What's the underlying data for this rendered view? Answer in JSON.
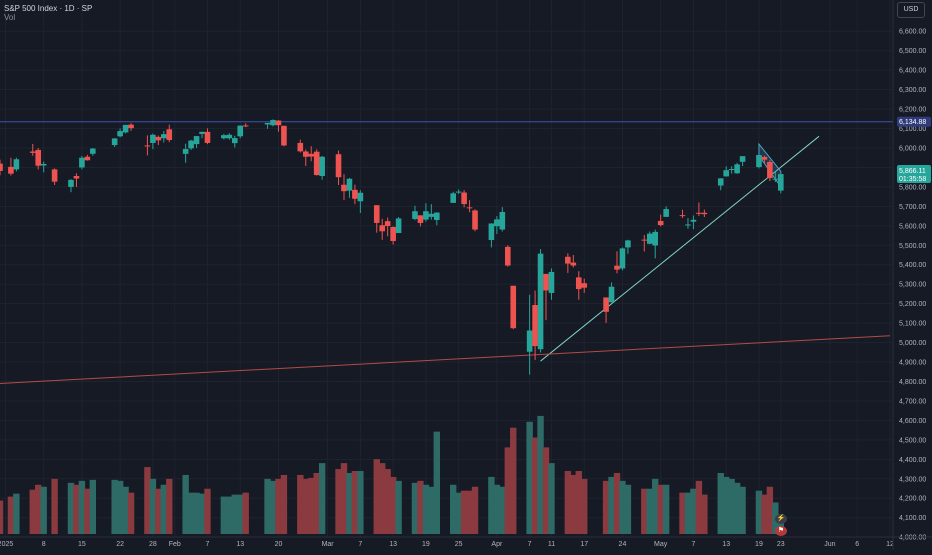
{
  "header": {
    "title": "S&P 500 Index · 1D · SP",
    "subtitle": "Vol"
  },
  "currency_button": "USD",
  "price_labels": {
    "horizontal_level": "6,134.88",
    "last_price": "5,866.11",
    "countdown": "01:35:58"
  },
  "badges": [
    {
      "icon": "lightning-icon",
      "glyph": "⚡",
      "color": "#ef5350"
    },
    {
      "icon": "flag-icon",
      "glyph": "⚑",
      "color": "#ef5350"
    }
  ],
  "colors": {
    "up": "#26a69a",
    "down": "#ef5350",
    "vol_up": "#2e6b66",
    "vol_down": "#8b3a3f",
    "grid": "#1f2330",
    "horizontal_line": "#3f51b5",
    "trendline": "#7fd4c1",
    "support_line": "#b24c48",
    "channel": "#4aa3c7",
    "last_price_bg": "#26a69a",
    "text": "#b2b5be"
  },
  "chart_data": {
    "type": "candlestick",
    "title": "S&P 500 Index · 1D · SP",
    "y_axis": {
      "range": [
        3970,
        6740
      ],
      "tick_labels": [
        "6,600.00",
        "6,500.00",
        "6,400.00",
        "6,300.00",
        "6,200.00",
        "6,100.00",
        "6,000.00",
        "5,900.00",
        "5,800.00",
        "5,700.00",
        "5,600.00",
        "5,500.00",
        "5,400.00",
        "5,300.00",
        "5,200.00",
        "5,100.00",
        "5,000.00",
        "4,900.00",
        "4,800.00",
        "4,700.00",
        "4,600.00",
        "4,500.00",
        "4,400.00",
        "4,300.00",
        "4,200.00",
        "4,100.00",
        "4,000.00"
      ]
    },
    "x_axis": {
      "range": [
        "2024-12-31",
        "2025-06-12"
      ],
      "ticks": [
        {
          "date": "2025-01-01",
          "label": "2025"
        },
        {
          "date": "2025-01-08",
          "label": "8"
        },
        {
          "date": "2025-01-15",
          "label": "15"
        },
        {
          "date": "2025-01-22",
          "label": "22"
        },
        {
          "date": "2025-01-28",
          "label": "28"
        },
        {
          "date": "2025-02-01",
          "label": "Feb"
        },
        {
          "date": "2025-02-07",
          "label": "7"
        },
        {
          "date": "2025-02-13",
          "label": "13"
        },
        {
          "date": "2025-02-20",
          "label": "20"
        },
        {
          "date": "2025-03-01",
          "label": "Mar"
        },
        {
          "date": "2025-03-07",
          "label": "7"
        },
        {
          "date": "2025-03-13",
          "label": "13"
        },
        {
          "date": "2025-03-19",
          "label": "19"
        },
        {
          "date": "2025-03-25",
          "label": "25"
        },
        {
          "date": "2025-04-01",
          "label": "Apr"
        },
        {
          "date": "2025-04-07",
          "label": "7"
        },
        {
          "date": "2025-04-11",
          "label": "11"
        },
        {
          "date": "2025-04-17",
          "label": "17"
        },
        {
          "date": "2025-04-24",
          "label": "24"
        },
        {
          "date": "2025-05-01",
          "label": "May"
        },
        {
          "date": "2025-05-07",
          "label": "7"
        },
        {
          "date": "2025-05-13",
          "label": "13"
        },
        {
          "date": "2025-05-19",
          "label": "19"
        },
        {
          "date": "2025-05-23",
          "label": "23"
        },
        {
          "date": "2025-06-01",
          "label": "Jun"
        },
        {
          "date": "2025-06-06",
          "label": "6"
        },
        {
          "date": "2025-06-12",
          "label": "12"
        }
      ]
    },
    "horizontal_level": 6134.88,
    "trendlines": [
      {
        "name": "rising-trendline",
        "from": {
          "date": "2025-04-09",
          "value": 4905
        },
        "to": {
          "date": "2025-05-30",
          "value": 6060
        }
      },
      {
        "name": "support-line",
        "from": {
          "date": "2024-12-31",
          "value": 4790
        },
        "to": {
          "date": "2025-06-12",
          "value": 5035
        }
      }
    ],
    "channel": {
      "from": {
        "date": "2025-05-19",
        "upper": 6020,
        "lower": 5960
      },
      "to": {
        "date": "2025-05-23",
        "upper": 5880,
        "lower": 5800
      }
    },
    "volume_range": [
      4060,
      4700
    ],
    "candles": [
      {
        "d": "2024-12-31",
        "o": 5920,
        "h": 5940,
        "l": 5860,
        "c": 5882,
        "v": 4230
      },
      {
        "d": "2025-01-02",
        "o": 5903,
        "h": 5950,
        "l": 5858,
        "c": 5868,
        "v": 4250
      },
      {
        "d": "2025-01-03",
        "o": 5890,
        "h": 5950,
        "l": 5880,
        "c": 5942,
        "v": 4265
      },
      {
        "d": "2025-01-06",
        "o": 5982,
        "h": 6021,
        "l": 5960,
        "c": 5975,
        "v": 4285
      },
      {
        "d": "2025-01-07",
        "o": 5990,
        "h": 6000,
        "l": 5890,
        "c": 5909,
        "v": 4310
      },
      {
        "d": "2025-01-08",
        "o": 5910,
        "h": 5930,
        "l": 5875,
        "c": 5918,
        "v": 4300
      },
      {
        "d": "2025-01-10",
        "o": 5890,
        "h": 5895,
        "l": 5810,
        "c": 5827,
        "v": 4340
      },
      {
        "d": "2025-01-13",
        "o": 5800,
        "h": 5840,
        "l": 5773,
        "c": 5836,
        "v": 4320
      },
      {
        "d": "2025-01-14",
        "o": 5856,
        "h": 5870,
        "l": 5800,
        "c": 5843,
        "v": 4310
      },
      {
        "d": "2025-01-15",
        "o": 5900,
        "h": 5960,
        "l": 5890,
        "c": 5950,
        "v": 4330
      },
      {
        "d": "2025-01-16",
        "o": 5955,
        "h": 5965,
        "l": 5935,
        "c": 5937,
        "v": 4290
      },
      {
        "d": "2025-01-17",
        "o": 5970,
        "h": 6000,
        "l": 5960,
        "c": 5997,
        "v": 4335
      },
      {
        "d": "2025-01-21",
        "o": 6015,
        "h": 6051,
        "l": 6005,
        "c": 6049,
        "v": 4335
      },
      {
        "d": "2025-01-22",
        "o": 6060,
        "h": 6100,
        "l": 6055,
        "c": 6087,
        "v": 4330
      },
      {
        "d": "2025-01-23",
        "o": 6080,
        "h": 6118,
        "l": 6075,
        "c": 6119,
        "v": 4300
      },
      {
        "d": "2025-01-24",
        "o": 6120,
        "h": 6128,
        "l": 6088,
        "c": 6102,
        "v": 4270
      },
      {
        "d": "2025-01-27",
        "o": 6013,
        "h": 6065,
        "l": 5962,
        "c": 6012,
        "v": 4400
      },
      {
        "d": "2025-01-28",
        "o": 6026,
        "h": 6074,
        "l": 5994,
        "c": 6068,
        "v": 4340
      },
      {
        "d": "2025-01-29",
        "o": 6057,
        "h": 6064,
        "l": 6015,
        "c": 6039,
        "v": 4290
      },
      {
        "d": "2025-01-30",
        "o": 6050,
        "h": 6087,
        "l": 6028,
        "c": 6071,
        "v": 4310
      },
      {
        "d": "2025-01-31",
        "o": 6096,
        "h": 6120,
        "l": 6030,
        "c": 6041,
        "v": 4340
      },
      {
        "d": "2025-02-03",
        "o": 5970,
        "h": 6022,
        "l": 5924,
        "c": 5995,
        "v": 4360
      },
      {
        "d": "2025-02-04",
        "o": 5998,
        "h": 6042,
        "l": 5990,
        "c": 6038,
        "v": 4270
      },
      {
        "d": "2025-02-05",
        "o": 6020,
        "h": 6062,
        "l": 6000,
        "c": 6061,
        "v": 4270
      },
      {
        "d": "2025-02-06",
        "o": 6072,
        "h": 6084,
        "l": 6050,
        "c": 6083,
        "v": 4265
      },
      {
        "d": "2025-02-07",
        "o": 6083,
        "h": 6101,
        "l": 6020,
        "c": 6026,
        "v": 4290
      },
      {
        "d": "2025-02-10",
        "o": 6050,
        "h": 6073,
        "l": 6044,
        "c": 6066,
        "v": 4250
      },
      {
        "d": "2025-02-11",
        "o": 6050,
        "h": 6076,
        "l": 6042,
        "c": 6068,
        "v": 4250
      },
      {
        "d": "2025-02-12",
        "o": 6025,
        "h": 6063,
        "l": 6003,
        "c": 6051,
        "v": 4260
      },
      {
        "d": "2025-02-13",
        "o": 6060,
        "h": 6116,
        "l": 6050,
        "c": 6115,
        "v": 4260
      },
      {
        "d": "2025-02-14",
        "o": 6116,
        "h": 6127,
        "l": 6107,
        "c": 6114,
        "v": 4270
      },
      {
        "d": "2025-02-18",
        "o": 6121,
        "h": 6129,
        "l": 6099,
        "c": 6129,
        "v": 4340
      },
      {
        "d": "2025-02-19",
        "o": 6117,
        "h": 6147,
        "l": 6111,
        "c": 6144,
        "v": 4330
      },
      {
        "d": "2025-02-20",
        "o": 6141,
        "h": 6143,
        "l": 6084,
        "c": 6117,
        "v": 4340
      },
      {
        "d": "2025-02-21",
        "o": 6114,
        "h": 6114,
        "l": 6009,
        "c": 6013,
        "v": 4360
      },
      {
        "d": "2025-02-24",
        "o": 6026,
        "h": 6043,
        "l": 5977,
        "c": 5983,
        "v": 4360
      },
      {
        "d": "2025-02-25",
        "o": 5982,
        "h": 5992,
        "l": 5908,
        "c": 5955,
        "v": 4340
      },
      {
        "d": "2025-02-26",
        "o": 5970,
        "h": 6009,
        "l": 5932,
        "c": 5956,
        "v": 4345
      },
      {
        "d": "2025-02-27",
        "o": 5981,
        "h": 5993,
        "l": 5858,
        "c": 5861,
        "v": 4370
      },
      {
        "d": "2025-02-28",
        "o": 5856,
        "h": 5959,
        "l": 5837,
        "c": 5955,
        "v": 4420
      },
      {
        "d": "2025-03-03",
        "o": 5968,
        "h": 5987,
        "l": 5810,
        "c": 5850,
        "v": 4390
      },
      {
        "d": "2025-03-04",
        "o": 5811,
        "h": 5865,
        "l": 5732,
        "c": 5778,
        "v": 4420
      },
      {
        "d": "2025-03-05",
        "o": 5781,
        "h": 5846,
        "l": 5744,
        "c": 5842,
        "v": 4370
      },
      {
        "d": "2025-03-06",
        "o": 5785,
        "h": 5812,
        "l": 5711,
        "c": 5739,
        "v": 4380
      },
      {
        "d": "2025-03-07",
        "o": 5726,
        "h": 5783,
        "l": 5666,
        "c": 5770,
        "v": 4380
      },
      {
        "d": "2025-03-10",
        "o": 5706,
        "h": 5706,
        "l": 5565,
        "c": 5615,
        "v": 4440
      },
      {
        "d": "2025-03-11",
        "o": 5603,
        "h": 5636,
        "l": 5528,
        "c": 5572,
        "v": 4420
      },
      {
        "d": "2025-03-12",
        "o": 5624,
        "h": 5642,
        "l": 5546,
        "c": 5599,
        "v": 4390
      },
      {
        "d": "2025-03-13",
        "o": 5594,
        "h": 5597,
        "l": 5504,
        "c": 5522,
        "v": 4350
      },
      {
        "d": "2025-03-14",
        "o": 5563,
        "h": 5645,
        "l": 5563,
        "c": 5638,
        "v": 4330
      },
      {
        "d": "2025-03-17",
        "o": 5635,
        "h": 5703,
        "l": 5629,
        "c": 5675,
        "v": 4320
      },
      {
        "d": "2025-03-18",
        "o": 5654,
        "h": 5654,
        "l": 5597,
        "c": 5615,
        "v": 4330
      },
      {
        "d": "2025-03-19",
        "o": 5632,
        "h": 5716,
        "l": 5622,
        "c": 5675,
        "v": 4310
      },
      {
        "d": "2025-03-20",
        "o": 5646,
        "h": 5711,
        "l": 5632,
        "c": 5662,
        "v": 4300
      },
      {
        "d": "2025-03-21",
        "o": 5630,
        "h": 5670,
        "l": 5603,
        "c": 5668,
        "v": 4580
      },
      {
        "d": "2025-03-24",
        "o": 5718,
        "h": 5775,
        "l": 5718,
        "c": 5767,
        "v": 4310
      },
      {
        "d": "2025-03-25",
        "o": 5775,
        "h": 5787,
        "l": 5764,
        "c": 5776,
        "v": 4270
      },
      {
        "d": "2025-03-26",
        "o": 5771,
        "h": 5783,
        "l": 5695,
        "c": 5712,
        "v": 4280
      },
      {
        "d": "2025-03-27",
        "o": 5695,
        "h": 5732,
        "l": 5670,
        "c": 5693,
        "v": 4280
      },
      {
        "d": "2025-03-28",
        "o": 5679,
        "h": 5685,
        "l": 5572,
        "c": 5581,
        "v": 4300
      },
      {
        "d": "2025-03-31",
        "o": 5527,
        "h": 5613,
        "l": 5489,
        "c": 5612,
        "v": 4350
      },
      {
        "d": "2025-04-01",
        "o": 5598,
        "h": 5650,
        "l": 5558,
        "c": 5633,
        "v": 4310
      },
      {
        "d": "2025-04-02",
        "o": 5581,
        "h": 5696,
        "l": 5571,
        "c": 5671,
        "v": 4300
      },
      {
        "d": "2025-04-03",
        "o": 5492,
        "h": 5500,
        "l": 5390,
        "c": 5396,
        "v": 4500
      },
      {
        "d": "2025-04-04",
        "o": 5292,
        "h": 5292,
        "l": 5069,
        "c": 5074,
        "v": 4600
      },
      {
        "d": "2025-04-07",
        "o": 4953,
        "h": 5246,
        "l": 4835,
        "c": 5062,
        "v": 4630
      },
      {
        "d": "2025-04-08",
        "o": 5193,
        "h": 5267,
        "l": 4910,
        "c": 4982,
        "v": 4550
      },
      {
        "d": "2025-04-09",
        "o": 4966,
        "h": 5481,
        "l": 4949,
        "c": 5457,
        "v": 4660
      },
      {
        "d": "2025-04-10",
        "o": 5353,
        "h": 5353,
        "l": 5115,
        "c": 5268,
        "v": 4500
      },
      {
        "d": "2025-04-11",
        "o": 5255,
        "h": 5381,
        "l": 5220,
        "c": 5363,
        "v": 4420
      },
      {
        "d": "2025-04-14",
        "o": 5441,
        "h": 5459,
        "l": 5358,
        "c": 5406,
        "v": 4380
      },
      {
        "d": "2025-04-15",
        "o": 5411,
        "h": 5450,
        "l": 5386,
        "c": 5396,
        "v": 4360
      },
      {
        "d": "2025-04-16",
        "o": 5335,
        "h": 5367,
        "l": 5220,
        "c": 5275,
        "v": 4380
      },
      {
        "d": "2025-04-17",
        "o": 5305,
        "h": 5328,
        "l": 5255,
        "c": 5282,
        "v": 4340
      },
      {
        "d": "2025-04-21",
        "o": 5232,
        "h": 5232,
        "l": 5101,
        "c": 5158,
        "v": 4330
      },
      {
        "d": "2025-04-22",
        "o": 5207,
        "h": 5309,
        "l": 5207,
        "c": 5287,
        "v": 4350
      },
      {
        "d": "2025-04-23",
        "o": 5395,
        "h": 5469,
        "l": 5356,
        "c": 5375,
        "v": 4370
      },
      {
        "d": "2025-04-24",
        "o": 5381,
        "h": 5489,
        "l": 5371,
        "c": 5484,
        "v": 4330
      },
      {
        "d": "2025-04-25",
        "o": 5489,
        "h": 5528,
        "l": 5456,
        "c": 5525,
        "v": 4310
      },
      {
        "d": "2025-04-28",
        "o": 5529,
        "h": 5553,
        "l": 5468,
        "c": 5528,
        "v": 4290
      },
      {
        "d": "2025-04-29",
        "o": 5508,
        "h": 5571,
        "l": 5505,
        "c": 5560,
        "v": 4290
      },
      {
        "d": "2025-04-30",
        "o": 5499,
        "h": 5581,
        "l": 5433,
        "c": 5569,
        "v": 4340
      },
      {
        "d": "2025-05-01",
        "o": 5625,
        "h": 5658,
        "l": 5597,
        "c": 5604,
        "v": 4310
      },
      {
        "d": "2025-05-02",
        "o": 5646,
        "h": 5700,
        "l": 5646,
        "c": 5686,
        "v": 4310
      },
      {
        "d": "2025-05-05",
        "o": 5655,
        "h": 5683,
        "l": 5640,
        "c": 5650,
        "v": 4270
      },
      {
        "d": "2025-05-06",
        "o": 5606,
        "h": 5640,
        "l": 5585,
        "c": 5607,
        "v": 4270
      },
      {
        "d": "2025-05-07",
        "o": 5621,
        "h": 5653,
        "l": 5583,
        "c": 5631,
        "v": 4290
      },
      {
        "d": "2025-05-08",
        "o": 5667,
        "h": 5720,
        "l": 5651,
        "c": 5664,
        "v": 4330
      },
      {
        "d": "2025-05-09",
        "o": 5667,
        "h": 5683,
        "l": 5645,
        "c": 5660,
        "v": 4260
      },
      {
        "d": "2025-05-12",
        "o": 5807,
        "h": 5845,
        "l": 5783,
        "c": 5844,
        "v": 4370
      },
      {
        "d": "2025-05-13",
        "o": 5854,
        "h": 5906,
        "l": 5853,
        "c": 5886,
        "v": 4350
      },
      {
        "d": "2025-05-14",
        "o": 5891,
        "h": 5906,
        "l": 5868,
        "c": 5892,
        "v": 4340
      },
      {
        "d": "2025-05-15",
        "o": 5870,
        "h": 5924,
        "l": 5867,
        "c": 5916,
        "v": 4320
      },
      {
        "d": "2025-05-16",
        "o": 5929,
        "h": 5958,
        "l": 5907,
        "c": 5958,
        "v": 4300
      },
      {
        "d": "2025-05-19",
        "o": 5902,
        "h": 5968,
        "l": 5895,
        "c": 5964,
        "v": 4280
      },
      {
        "d": "2025-05-20",
        "o": 5954,
        "h": 5960,
        "l": 5919,
        "c": 5940,
        "v": 4260
      },
      {
        "d": "2025-05-21",
        "o": 5928,
        "h": 5938,
        "l": 5830,
        "c": 5845,
        "v": 4300
      },
      {
        "d": "2025-05-22",
        "o": 5841,
        "h": 5878,
        "l": 5825,
        "c": 5842,
        "v": 4220
      },
      {
        "d": "2025-05-23",
        "o": 5781,
        "h": 5858,
        "l": 5767,
        "c": 5866,
        "v": 4160
      }
    ]
  }
}
